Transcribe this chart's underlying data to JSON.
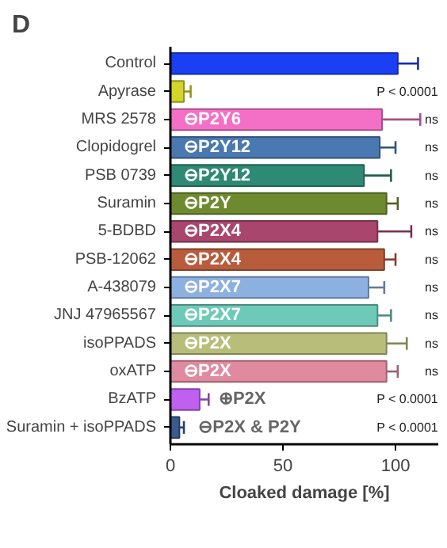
{
  "chart_data": {
    "type": "bar",
    "orientation": "horizontal",
    "title": "D",
    "xlabel": "Cloaked damage [%]",
    "categories": [
      "Control",
      "Apyrase",
      "MRS 2578",
      "Clopidogrel",
      "PSB 0739",
      "Suramin",
      "5-BDBD",
      "PSB-12062",
      "A-438079",
      "JNJ 47965567",
      "isoPPADS",
      "oxATP",
      "BzATP",
      "Suramin + isoPPADS"
    ],
    "values": [
      101,
      6,
      94,
      93,
      86,
      96,
      92,
      95,
      88,
      92,
      96,
      96,
      13,
      4
    ],
    "errors": [
      9,
      3,
      17,
      7,
      12,
      5,
      15,
      5,
      7,
      6,
      9,
      5,
      4,
      2
    ],
    "value_labels": [
      null,
      "P < 0.0001",
      "ns",
      "ns",
      "ns",
      "ns",
      "ns",
      "ns",
      "ns",
      "ns",
      "ns",
      "ns",
      "P < 0.0001",
      "P < 0.0001"
    ],
    "colors": [
      "#1a3ff5",
      "#d4d42a",
      "#f46fc6",
      "#4a78b0",
      "#2e8a74",
      "#6e8a2e",
      "#a8466e",
      "#b85c3c",
      "#8cb0e0",
      "#6ecab8",
      "#b8be7a",
      "#e08aa0",
      "#c060f0",
      "#3a5a90"
    ],
    "xlim": [
      0,
      119
    ],
    "xticks": [
      0,
      50,
      100
    ],
    "grid": false,
    "annotations": [
      {
        "text": "⊖P2Y6",
        "x": 6,
        "y": "MRS 2578"
      },
      {
        "text": "⊖P2Y12",
        "x": 6,
        "y": "Clopidogrel"
      },
      {
        "text": "⊖P2Y12",
        "x": 6,
        "y": "PSB 0739"
      },
      {
        "text": "⊖P2Y",
        "x": 6,
        "y": "Suramin"
      },
      {
        "text": "⊖P2X4",
        "x": 6,
        "y": "5-BDBD"
      },
      {
        "text": "⊖P2X4",
        "x": 6,
        "y": "PSB-12062"
      },
      {
        "text": "⊖P2X7",
        "x": 6,
        "y": "A-438079"
      },
      {
        "text": "⊖P2X7",
        "x": 6,
        "y": "JNJ 47965567"
      },
      {
        "text": "⊖P2X",
        "x": 6,
        "y": "isoPPADS"
      },
      {
        "text": "⊖P2X",
        "x": 6,
        "y": "oxATP"
      },
      {
        "text": "⊕P2X",
        "x": 13,
        "y": "BzATP"
      },
      {
        "text": "⊖P2X & P2Y",
        "x": 4,
        "y": "Suramin + isoPPADS"
      }
    ]
  }
}
